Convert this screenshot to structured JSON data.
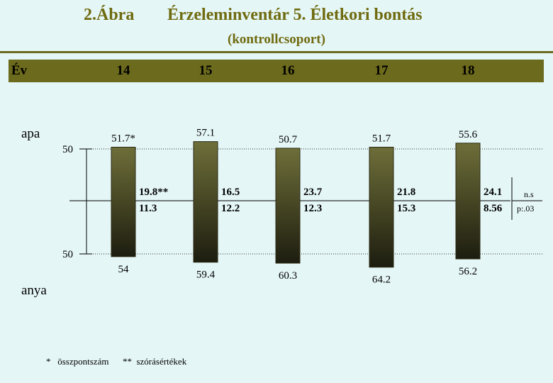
{
  "header": {
    "figure_label": "2.Ábra",
    "title": "Érzeleminventár  5. Életkori bontás",
    "subtitle": "(kontrollcsoport)"
  },
  "year_row": {
    "label": "Év",
    "years": [
      "14",
      "15",
      "16",
      "17",
      "18"
    ]
  },
  "colors": {
    "background": "#e5f6f6",
    "band": "#6c6a1c",
    "title": "#6f6b10",
    "bar_top": "#6e6e3a",
    "bar_bottom": "#1d1d10"
  },
  "chart_data": {
    "type": "bar",
    "orientation": "diverging-vertical",
    "categories": [
      "14",
      "15",
      "16",
      "17",
      "18"
    ],
    "row_labels": {
      "top": "apa",
      "bottom": "anya"
    },
    "reference_ticks": {
      "top": 50,
      "bottom": 50
    },
    "series": [
      {
        "name": "apa",
        "values": [
          51.7,
          57.1,
          50.7,
          51.7,
          55.6
        ],
        "labels": [
          "51.7*",
          "57.1",
          "50.7",
          "51.7",
          "55.6"
        ]
      },
      {
        "name": "anya",
        "values": [
          54,
          59.4,
          60.3,
          64.2,
          56.2
        ],
        "labels": [
          "54",
          "59.4",
          "60.3",
          "64.2",
          "56.2"
        ]
      }
    ],
    "spread_values": {
      "upper": [
        "19.8**",
        "16.5",
        "23.7",
        "21.8",
        "24.1"
      ],
      "lower": [
        "11.3",
        "12.2",
        "12.3",
        "15.3",
        "8.56"
      ]
    },
    "significance": {
      "top": "n.s",
      "bottom": "p:.03"
    }
  },
  "footnote": {
    "star": "*   összpontszám",
    "double_star": "**  szórásértékek"
  }
}
